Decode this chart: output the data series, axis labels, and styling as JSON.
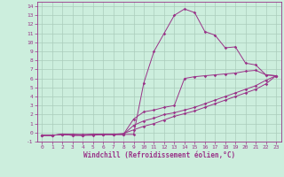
{
  "xlabel": "Windchill (Refroidissement éolien,°C)",
  "bg_color": "#cceedd",
  "grid_color": "#aaccbb",
  "line_color": "#993388",
  "xlim": [
    -0.5,
    23.5
  ],
  "ylim": [
    -1.0,
    14.5
  ],
  "xticks": [
    0,
    1,
    2,
    3,
    4,
    5,
    6,
    7,
    8,
    9,
    10,
    11,
    12,
    13,
    14,
    15,
    16,
    17,
    18,
    19,
    20,
    21,
    22,
    23
  ],
  "yticks": [
    -1,
    0,
    1,
    2,
    3,
    4,
    5,
    6,
    7,
    8,
    9,
    10,
    11,
    12,
    13,
    14
  ],
  "line1_x": [
    0,
    1,
    2,
    3,
    4,
    5,
    6,
    7,
    8,
    9,
    10,
    11,
    12,
    13,
    14,
    15,
    16,
    17,
    18,
    19,
    20,
    21,
    22,
    23
  ],
  "line1_y": [
    -0.3,
    -0.3,
    -0.2,
    -0.3,
    -0.3,
    -0.2,
    -0.2,
    -0.2,
    -0.2,
    -0.2,
    5.5,
    9.0,
    11.0,
    13.0,
    13.7,
    13.3,
    11.2,
    10.8,
    9.4,
    9.5,
    7.7,
    7.5,
    6.4,
    6.3
  ],
  "line2_x": [
    0,
    1,
    2,
    3,
    4,
    5,
    6,
    7,
    8,
    9,
    10,
    11,
    12,
    13,
    14,
    15,
    16,
    17,
    18,
    19,
    20,
    21,
    22,
    23
  ],
  "line2_y": [
    -0.3,
    -0.3,
    -0.2,
    -0.3,
    -0.3,
    -0.3,
    -0.2,
    -0.2,
    -0.2,
    1.5,
    2.3,
    2.5,
    2.8,
    3.0,
    6.0,
    6.2,
    6.3,
    6.4,
    6.5,
    6.6,
    6.8,
    6.9,
    6.4,
    6.3
  ],
  "line3_x": [
    0,
    1,
    2,
    3,
    4,
    5,
    6,
    7,
    8,
    9,
    10,
    11,
    12,
    13,
    14,
    15,
    16,
    17,
    18,
    19,
    20,
    21,
    22,
    23
  ],
  "line3_y": [
    -0.3,
    -0.3,
    -0.2,
    -0.2,
    -0.2,
    -0.2,
    -0.2,
    -0.2,
    -0.2,
    0.8,
    1.3,
    1.6,
    2.0,
    2.2,
    2.5,
    2.8,
    3.2,
    3.6,
    4.0,
    4.4,
    4.8,
    5.2,
    5.8,
    6.3
  ],
  "line4_x": [
    0,
    1,
    2,
    3,
    4,
    5,
    6,
    7,
    8,
    9,
    10,
    11,
    12,
    13,
    14,
    15,
    16,
    17,
    18,
    19,
    20,
    21,
    22,
    23
  ],
  "line4_y": [
    -0.3,
    -0.3,
    -0.2,
    -0.2,
    -0.3,
    -0.2,
    -0.2,
    -0.2,
    -0.1,
    0.3,
    0.7,
    1.0,
    1.4,
    1.8,
    2.1,
    2.4,
    2.8,
    3.2,
    3.6,
    4.0,
    4.4,
    4.8,
    5.4,
    6.3
  ]
}
